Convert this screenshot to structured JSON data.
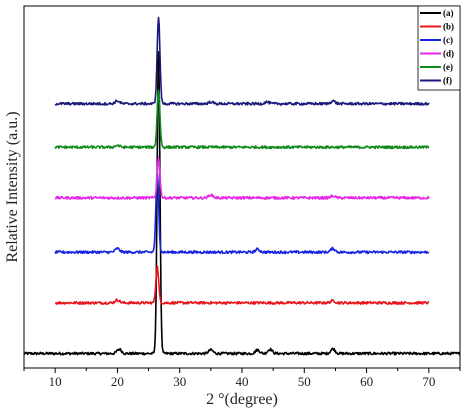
{
  "chart_data": {
    "type": "line",
    "xlabel": "2 °(degree)",
    "ylabel": "Relative Intensity (a.u.)",
    "xlim": [
      5,
      75
    ],
    "xticks": [
      10,
      20,
      30,
      40,
      50,
      60,
      70
    ],
    "ylim": [
      0,
      100
    ],
    "legend_position": "top-right",
    "series": [
      {
        "name": "(a)",
        "color": "#000000",
        "x_range": [
          5,
          75
        ],
        "baseline": 4,
        "peaks": [
          [
            26.6,
            83
          ],
          [
            20.3,
            1.2
          ],
          [
            35.0,
            1.0
          ],
          [
            42.5,
            1.0
          ],
          [
            44.5,
            1.2
          ],
          [
            54.6,
            1.3
          ]
        ]
      },
      {
        "name": "(b)",
        "color": "#e8141c",
        "x_range": [
          10,
          70
        ],
        "baseline": 18,
        "peaks": [
          [
            26.4,
            10
          ],
          [
            20.0,
            0.8
          ],
          [
            54.6,
            0.6
          ]
        ]
      },
      {
        "name": "(c)",
        "color": "#1424e0",
        "x_range": [
          10,
          70
        ],
        "baseline": 32,
        "peaks": [
          [
            26.4,
            22
          ],
          [
            20.0,
            1.0
          ],
          [
            42.5,
            0.8
          ],
          [
            54.6,
            1.0
          ]
        ]
      },
      {
        "name": "(d)",
        "color": "#e628e6",
        "x_range": [
          10,
          70
        ],
        "baseline": 47,
        "peaks": [
          [
            26.6,
            11
          ],
          [
            35.0,
            0.8
          ],
          [
            54.6,
            0.5
          ]
        ]
      },
      {
        "name": "(e)",
        "color": "#118a1b",
        "x_range": [
          10,
          70
        ],
        "baseline": 61,
        "peaks": [
          [
            26.6,
            16
          ],
          [
            20.0,
            0.5
          ]
        ]
      },
      {
        "name": "(f)",
        "color": "#1a1a7a",
        "x_range": [
          10,
          70
        ],
        "baseline": 73,
        "peaks": [
          [
            26.6,
            24
          ],
          [
            20.0,
            0.8
          ],
          [
            35.0,
            0.5
          ],
          [
            44.0,
            0.5
          ],
          [
            54.6,
            0.8
          ]
        ]
      }
    ]
  }
}
